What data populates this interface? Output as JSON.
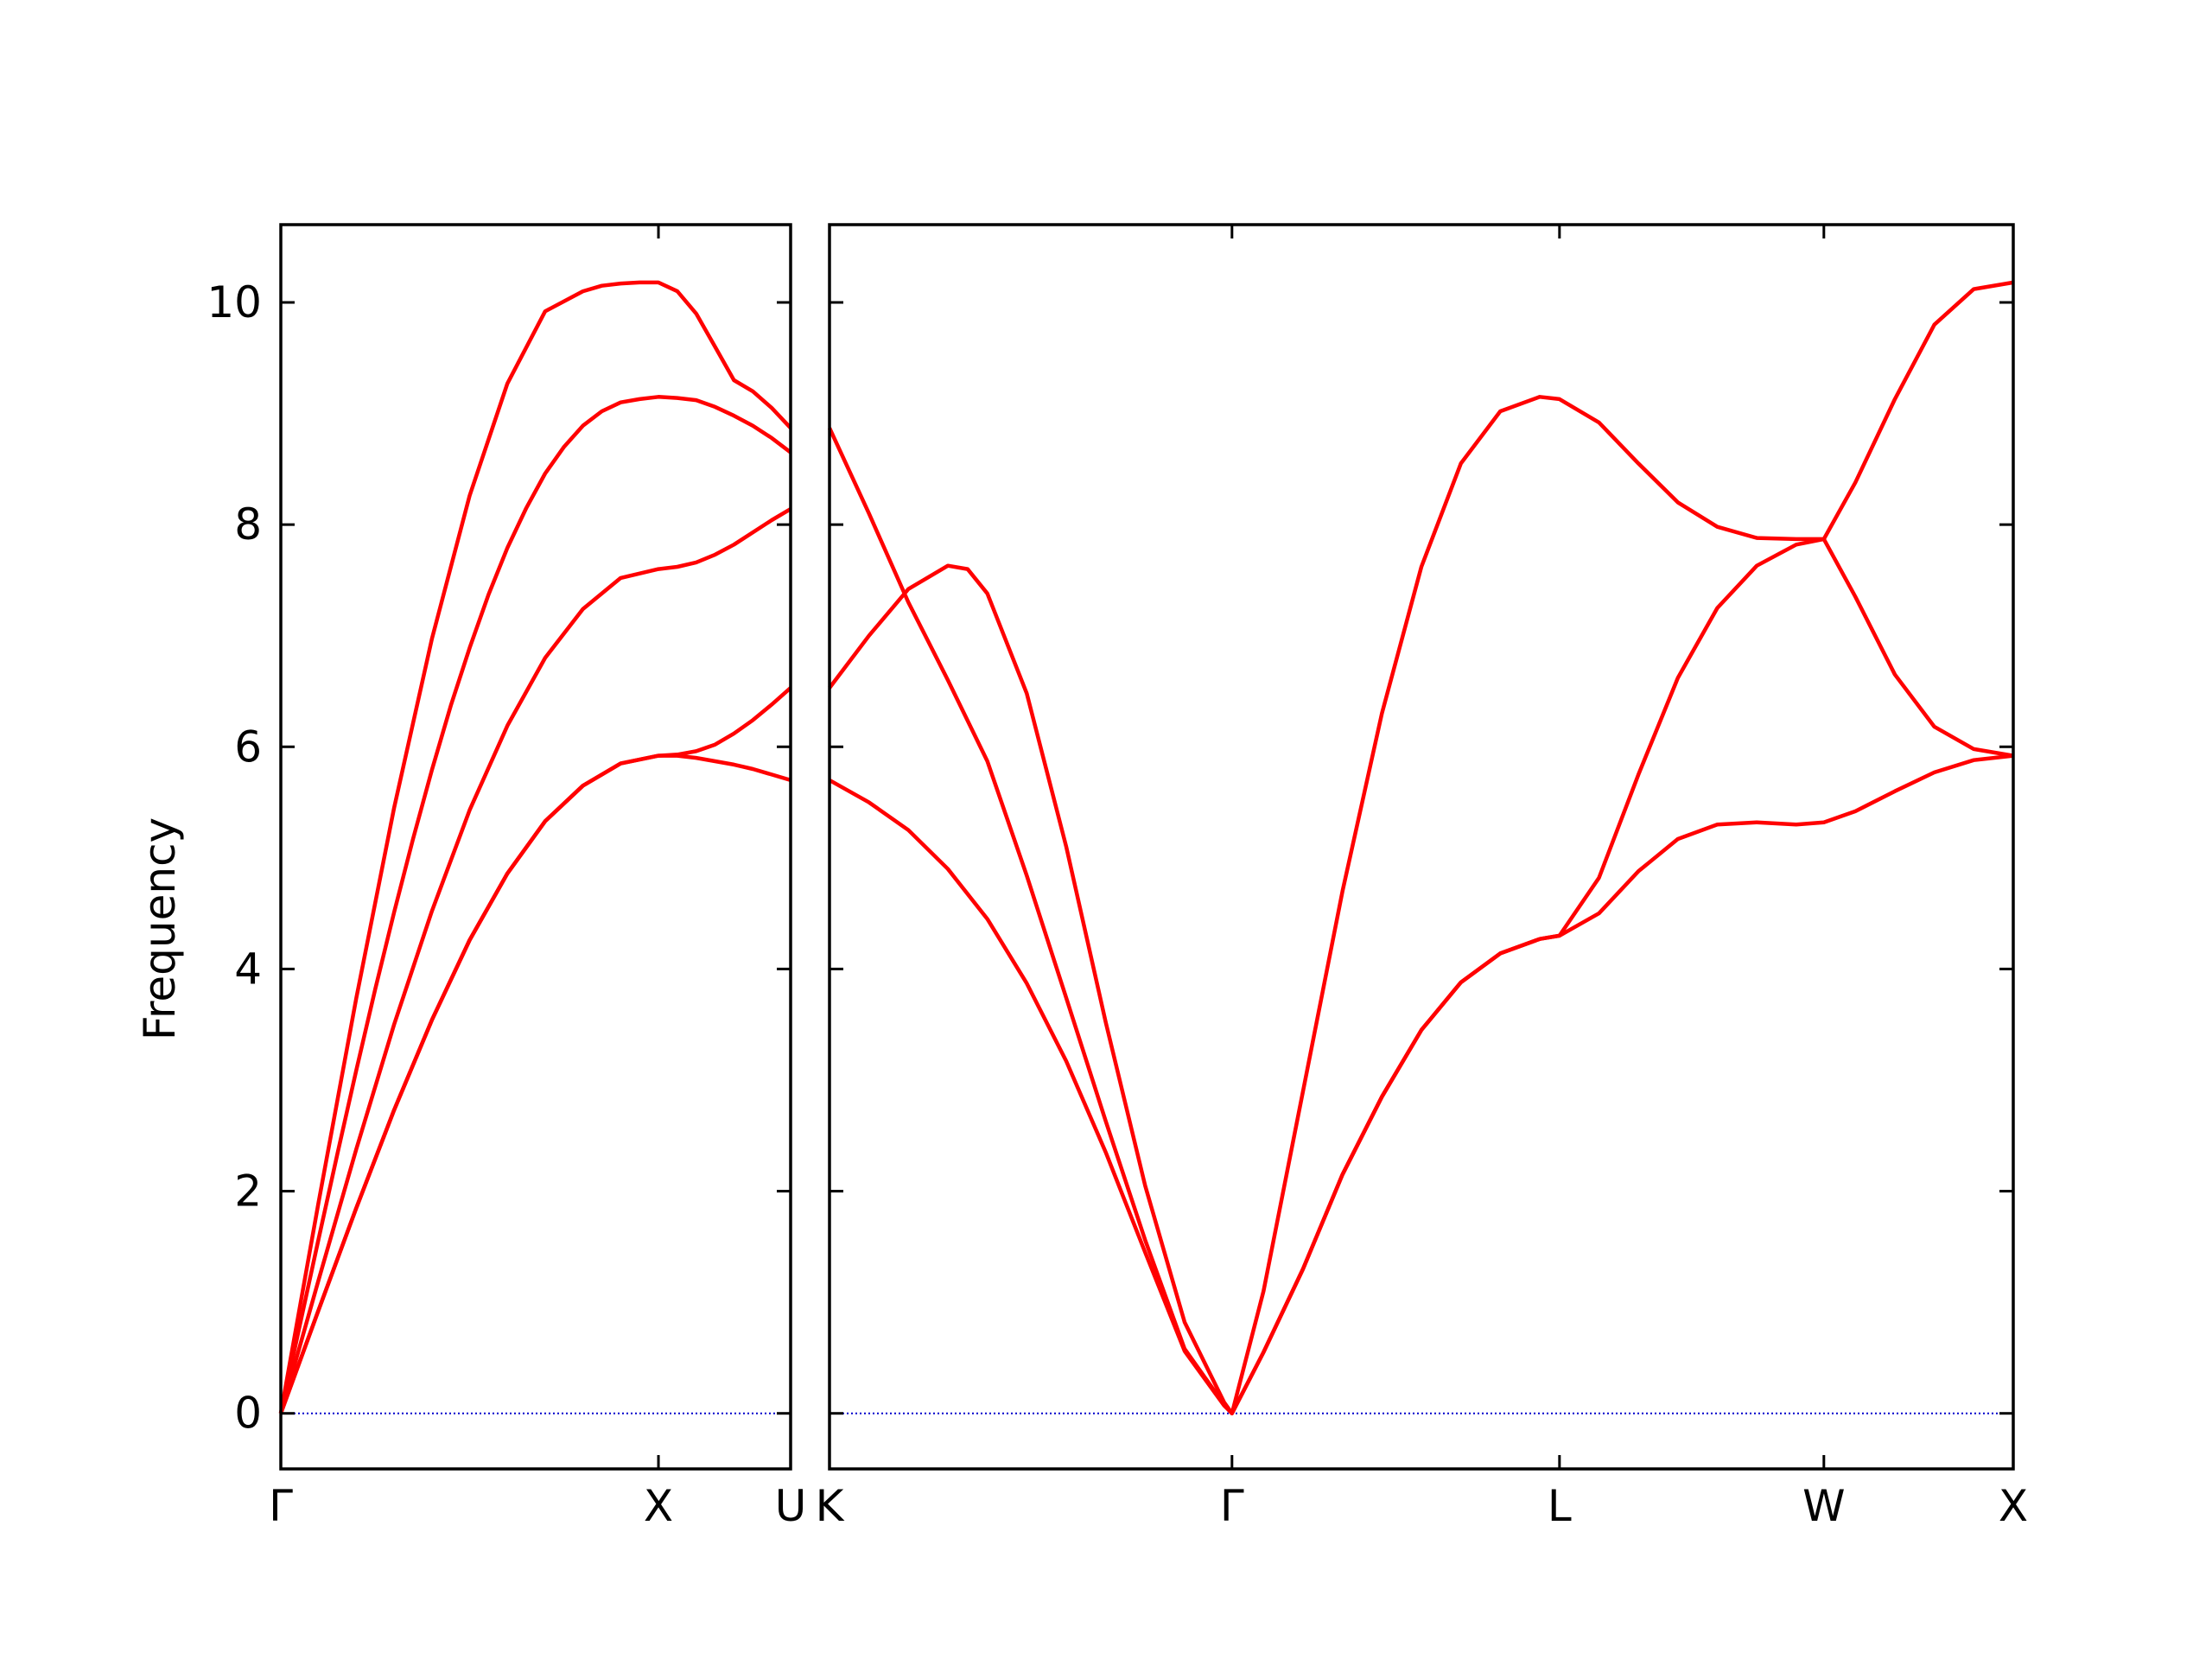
{
  "chart_data": {
    "type": "line",
    "title": "",
    "ylabel": "Frequency",
    "ylim": [
      -0.5,
      10.7
    ],
    "yticks": [
      0,
      2,
      4,
      6,
      8,
      10
    ],
    "ytick_labels": [
      "0",
      "2",
      "4",
      "6",
      "8",
      "10"
    ],
    "grid": false,
    "legend": "none",
    "colors": {
      "bands": "#ff0000",
      "zero_line": "#0000cc",
      "frame": "#000000"
    },
    "panels": [
      {
        "name": "left",
        "xlim": [
          0,
          1.35
        ],
        "xticks": [
          0,
          1.0,
          1.35
        ],
        "xtick_labels": [
          "Γ",
          "X",
          "U"
        ],
        "series": [
          {
            "x": [
              0,
              0.05,
              0.1,
              0.15,
              0.2,
              0.25,
              0.3,
              0.35,
              0.4,
              0.45,
              0.5,
              0.55,
              0.6,
              0.65,
              0.7,
              0.75,
              0.8,
              0.85,
              0.9,
              0.95,
              1.0,
              1.05,
              1.1,
              1.15,
              1.2,
              1.25,
              1.3,
              1.35
            ],
            "values": [
              0,
              0.79,
              1.57,
              2.34,
              3.09,
              3.82,
              4.51,
              5.17,
              5.79,
              6.37,
              6.89,
              7.37,
              7.79,
              8.15,
              8.46,
              8.7,
              8.89,
              9.02,
              9.1,
              9.13,
              9.15,
              9.14,
              9.12,
              9.06,
              8.98,
              8.89,
              8.78,
              8.65
            ]
          },
          {
            "x": [
              0,
              0.1,
              0.2,
              0.3,
              0.4,
              0.5,
              0.6,
              0.7,
              0.8,
              0.9,
              1.0,
              1.05,
              1.1,
              1.15,
              1.2,
              1.25,
              1.3,
              1.35
            ],
            "values": [
              0,
              0.93,
              1.85,
              2.73,
              3.54,
              4.26,
              4.86,
              5.33,
              5.65,
              5.85,
              5.92,
              5.92,
              5.9,
              5.87,
              5.84,
              5.8,
              5.75,
              5.7
            ]
          },
          {
            "x": [
              0,
              0.1,
              0.2,
              0.3,
              0.4,
              0.5,
              0.6,
              0.7,
              0.8,
              0.9,
              1.0,
              1.05,
              1.1,
              1.15,
              1.2,
              1.25,
              1.3,
              1.35
            ],
            "values": [
              0,
              1.2,
              2.38,
              3.5,
              4.52,
              5.43,
              6.19,
              6.8,
              7.24,
              7.52,
              7.6,
              7.62,
              7.66,
              7.73,
              7.82,
              7.93,
              8.04,
              8.14
            ]
          },
          {
            "x": [
              0,
              0.1,
              0.2,
              0.3,
              0.4,
              0.5,
              0.6,
              0.7,
              0.8,
              0.85,
              0.9,
              0.95,
              1.0,
              1.05,
              1.1,
              1.15,
              1.2,
              1.25,
              1.3,
              1.35
            ],
            "values": [
              0,
              1.9,
              3.74,
              5.45,
              6.97,
              8.26,
              9.27,
              9.92,
              10.1,
              10.15,
              10.17,
              10.18,
              10.18,
              10.1,
              9.9,
              9.6,
              9.3,
              9.2,
              9.05,
              8.87
            ]
          },
          {
            "x": [
              0,
              0.1,
              0.2,
              0.3,
              0.4,
              0.5,
              0.6,
              0.7,
              0.8,
              0.9,
              1.0,
              1.05,
              1.1,
              1.15,
              1.2,
              1.25,
              1.3,
              1.35
            ],
            "values": [
              0,
              0.93,
              1.85,
              2.73,
              3.54,
              4.26,
              4.86,
              5.33,
              5.65,
              5.85,
              5.92,
              5.93,
              5.96,
              6.02,
              6.12,
              6.24,
              6.38,
              6.53
            ]
          }
        ]
      },
      {
        "name": "right",
        "xlim": [
          0,
          3.0
        ],
        "xticks": [
          0,
          1.02,
          1.85,
          2.52,
          3.0
        ],
        "xtick_labels": [
          "K",
          "Γ",
          "L",
          "W",
          "X"
        ],
        "series": [
          {
            "x": [
              0,
              0.1,
              0.2,
              0.3,
              0.4,
              0.5,
              0.6,
              0.7,
              0.8,
              0.9,
              1.0,
              1.02,
              1.1,
              1.2,
              1.3,
              1.4,
              1.5,
              1.6,
              1.7,
              1.8,
              1.85,
              1.95,
              2.05,
              2.15,
              2.25,
              2.35,
              2.45,
              2.52,
              2.6,
              2.7,
              2.8,
              2.9,
              3.0
            ],
            "values": [
              5.7,
              5.5,
              5.25,
              4.9,
              4.45,
              3.87,
              3.17,
              2.35,
              1.45,
              0.56,
              0.07,
              0,
              0.55,
              1.3,
              2.15,
              2.85,
              3.45,
              3.88,
              4.14,
              4.27,
              4.3,
              4.5,
              4.88,
              5.17,
              5.3,
              5.32,
              5.3,
              5.32,
              5.42,
              5.6,
              5.77,
              5.88,
              5.92
            ]
          },
          {
            "x": [
              0,
              0.1,
              0.2,
              0.3,
              0.4,
              0.5,
              0.6,
              0.7,
              0.8,
              0.9,
              1.0,
              1.02,
              1.1,
              1.2,
              1.3,
              1.4,
              1.5,
              1.6,
              1.7,
              1.8,
              1.85,
              1.95,
              2.05,
              2.15,
              2.25,
              2.35,
              2.45,
              2.52,
              2.6,
              2.7,
              2.8,
              2.9,
              3.0
            ],
            "values": [
              8.87,
              8.1,
              7.3,
              6.6,
              5.87,
              4.84,
              3.74,
              2.63,
              1.56,
              0.58,
              0.08,
              0,
              0.55,
              1.3,
              2.15,
              2.85,
              3.45,
              3.88,
              4.14,
              4.27,
              4.3,
              4.82,
              5.75,
              6.62,
              7.25,
              7.63,
              7.82,
              7.87,
              7.35,
              6.65,
              6.18,
              5.98,
              5.92
            ]
          },
          {
            "x": [
              0,
              0.1,
              0.2,
              0.3,
              0.35,
              0.4,
              0.5,
              0.6,
              0.7,
              0.8,
              0.9,
              1.0,
              1.02,
              1.1,
              1.2,
              1.3,
              1.4,
              1.5,
              1.6,
              1.7,
              1.8,
              1.85,
              1.95,
              2.05,
              2.15,
              2.25,
              2.35,
              2.45,
              2.52,
              2.6,
              2.7,
              2.8,
              2.9,
              3.0
            ],
            "values": [
              6.53,
              7.0,
              7.42,
              7.63,
              7.6,
              7.38,
              6.48,
              5.1,
              3.52,
              2.05,
              0.82,
              0.1,
              0,
              1.1,
              2.9,
              4.7,
              6.3,
              7.62,
              8.55,
              9.02,
              9.15,
              9.13,
              8.92,
              8.55,
              8.2,
              7.98,
              7.88,
              7.87,
              7.87,
              8.38,
              9.13,
              9.8,
              10.12,
              10.18
            ]
          }
        ]
      }
    ]
  }
}
